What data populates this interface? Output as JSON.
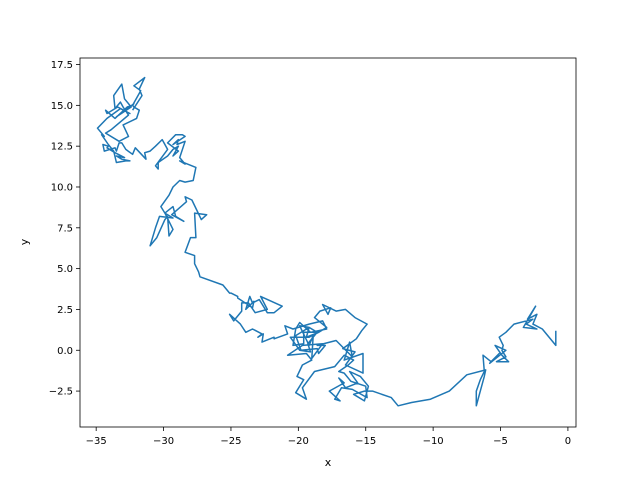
{
  "chart_data": {
    "type": "line",
    "title": "",
    "xlabel": "x",
    "ylabel": "y",
    "xlim": [
      -36.2,
      0.6
    ],
    "ylim": [
      -4.7,
      17.9
    ],
    "xticks": [
      -35,
      -30,
      -25,
      -20,
      -15,
      -10,
      -5,
      0
    ],
    "xtick_labels": [
      "−35",
      "−30",
      "−25",
      "−20",
      "−15",
      "−10",
      "−5",
      "0"
    ],
    "yticks": [
      -2.5,
      0.0,
      2.5,
      5.0,
      7.5,
      10.0,
      12.5,
      15.0,
      17.5
    ],
    "ytick_labels": [
      "−2.5",
      "0.0",
      "2.5",
      "5.0",
      "7.5",
      "10.0",
      "12.5",
      "15.0",
      "17.5"
    ],
    "grid": false,
    "legend": "none",
    "line_color": "#1f77b4",
    "series": [
      {
        "x": [
          -0.9,
          -0.9,
          -1.9,
          -2.6,
          -2.3,
          -3.0,
          -2.4,
          -3.3,
          -2.3,
          -3.1,
          -2.6,
          -4.0,
          -4.6,
          -5.1,
          -4.8,
          -4.9,
          -4.6,
          -5.3,
          -4.4,
          -4.9,
          -5.4,
          -4.6,
          -5.8,
          -5.1,
          -5.7,
          -6.3,
          -6.2,
          -6.5,
          -6.8,
          -6.8,
          -6.5,
          -6.2,
          -6.1,
          -7.5,
          -8.8,
          -10.2,
          -11.6,
          -12.6,
          -13.1,
          -14.5,
          -15.1,
          -15.9,
          -15.1,
          -14.8,
          -15.4,
          -16.2,
          -15.6,
          -16.5,
          -17.0,
          -16.6,
          -17.7,
          -16.9,
          -17.3,
          -16.8,
          -16.0,
          -14.9,
          -15.0,
          -16.1,
          -16.6,
          -17.0,
          -16.3,
          -15.9,
          -16.6,
          -17.3,
          -18.8,
          -19.7,
          -19.4,
          -20.2,
          -19.6,
          -20.1,
          -19.7,
          -19.0,
          -19.4,
          -20.8,
          -19.7,
          -18.2,
          -19.0,
          -18.9,
          -19.2,
          -19.9,
          -19.2,
          -20.2,
          -19.8,
          -18.6,
          -18.5,
          -18.0,
          -18.6,
          -17.2,
          -16.0,
          -16.2,
          -16.6,
          -15.2,
          -15.2,
          -16.5,
          -15.8,
          -16.7,
          -15.7,
          -15.3,
          -14.9,
          -15.8,
          -16.5,
          -17.2,
          -18.2,
          -17.8,
          -17.6,
          -18.4,
          -18.8,
          -17.9,
          -18.5,
          -19.4,
          -19.2,
          -18.6,
          -19.3,
          -19.1,
          -19.9,
          -20.6,
          -19.2,
          -18.5,
          -19.6,
          -19.6,
          -20.4,
          -20.2,
          -19.9,
          -19.1,
          -17.9,
          -18.2,
          -19.2,
          -20.4,
          -21.0,
          -20.8,
          -21.8,
          -21.8,
          -22.7,
          -22.6,
          -23.0,
          -22.7,
          -23.4,
          -23.9,
          -24.3,
          -25.1,
          -24.8,
          -24.2,
          -24.2,
          -23.7,
          -23.2,
          -22.3,
          -22.8,
          -21.2,
          -21.8,
          -22.3,
          -22.9,
          -23.4,
          -23.6,
          -23.9,
          -23.3,
          -23.4,
          -24.5,
          -24.5,
          -25.0,
          -25.1,
          -25.6,
          -27.3,
          -27.4,
          -27.7,
          -27.7,
          -28.4,
          -28.0,
          -27.6,
          -27.7,
          -26.8,
          -27.2,
          -27.9,
          -28.4,
          -28.3,
          -29.4,
          -28.5,
          -29.1,
          -29.3,
          -29.9,
          -29.3,
          -29.6,
          -29.7,
          -29.9,
          -30.5,
          -31.0,
          -30.6,
          -30.3,
          -29.3,
          -29.9,
          -30.2,
          -29.6,
          -29.3,
          -28.8,
          -28.4,
          -27.8,
          -27.6,
          -28.8,
          -28.4,
          -28.8,
          -28.4,
          -29.0,
          -28.9,
          -29.3,
          -28.4,
          -28.6,
          -29.1,
          -29.7,
          -28.9,
          -29.3,
          -28.9,
          -29.3,
          -29.7,
          -30.4,
          -30.4,
          -30.6,
          -29.7,
          -30.1,
          -30.6,
          -31.0,
          -31.4,
          -31.3,
          -32.1,
          -32.3,
          -32.8,
          -33.1,
          -33.3,
          -33.5,
          -33.6,
          -34.4,
          -34.5,
          -34.1,
          -34.2,
          -33.6,
          -33.6,
          -32.9,
          -33.5,
          -33.1,
          -32.5,
          -32.8,
          -33.5,
          -33.7,
          -34.1,
          -34.6,
          -34.4,
          -34.9,
          -34.2,
          -33.2,
          -32.5,
          -33.4,
          -34.2,
          -34.3,
          -33.6,
          -32.7,
          -32.3,
          -32.2,
          -33.5,
          -32.4,
          -32.9,
          -33.1,
          -33.7,
          -33.6,
          -33.2,
          -33.0,
          -32.6,
          -33.9,
          -34.3,
          -33.3,
          -32.6,
          -33.0,
          -32.0,
          -31.8,
          -32.2,
          -32.3,
          -31.7,
          -32.2,
          -31.4,
          -31.8,
          -31.6,
          -32.3
        ]
      }
    ]
  }
}
